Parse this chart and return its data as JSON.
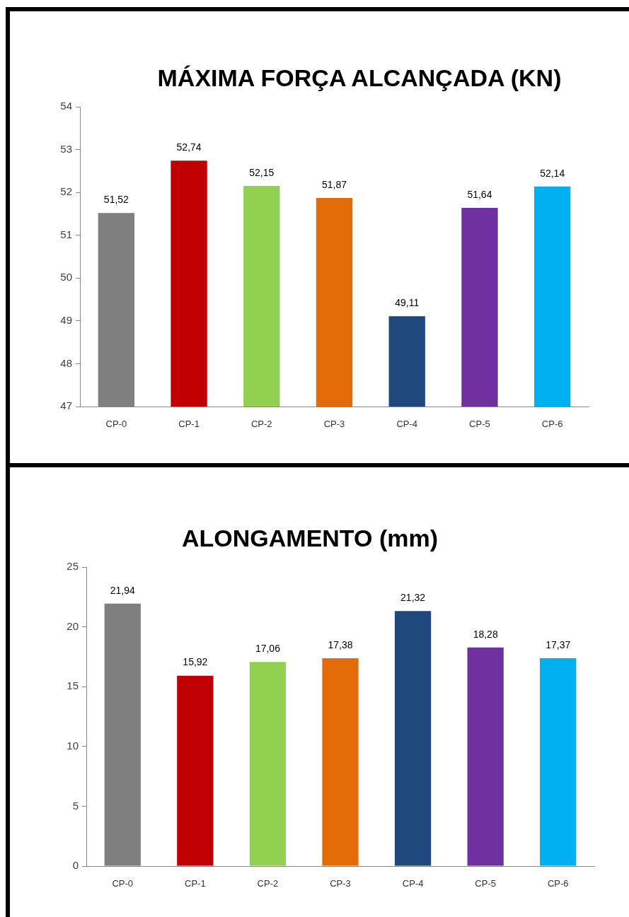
{
  "chart_data": [
    {
      "type": "bar",
      "title": "MÁXIMA FORÇA ALCANÇADA (KN)",
      "categories": [
        "CP-0",
        "CP-1",
        "CP-2",
        "CP-3",
        "CP-4",
        "CP-5",
        "CP-6"
      ],
      "values": [
        51.52,
        52.74,
        52.15,
        51.87,
        49.11,
        51.64,
        52.14
      ],
      "colors": [
        "#7f7f7f",
        "#c00000",
        "#92d050",
        "#e36c09",
        "#1f497d",
        "#7030a0",
        "#00b0f0"
      ],
      "value_labels": [
        "51,52",
        "52,74",
        "52,15",
        "51,87",
        "49,11",
        "51,64",
        "52,14"
      ],
      "ylim": [
        47,
        54
      ],
      "yticks": [
        47,
        48,
        49,
        50,
        51,
        52,
        53,
        54
      ]
    },
    {
      "type": "bar",
      "title": "ALONGAMENTO (mm)",
      "categories": [
        "CP-0",
        "CP-1",
        "CP-2",
        "CP-3",
        "CP-4",
        "CP-5",
        "CP-6"
      ],
      "values": [
        21.94,
        15.92,
        17.06,
        17.38,
        21.32,
        18.28,
        17.37
      ],
      "colors": [
        "#7f7f7f",
        "#c00000",
        "#92d050",
        "#e36c09",
        "#1f497d",
        "#7030a0",
        "#00b0f0"
      ],
      "value_labels": [
        "21,94",
        "15,92",
        "17,06",
        "17,38",
        "21,32",
        "18,28",
        "17,37"
      ],
      "ylim": [
        0,
        25
      ],
      "yticks": [
        0,
        5,
        10,
        15,
        20,
        25
      ]
    }
  ]
}
